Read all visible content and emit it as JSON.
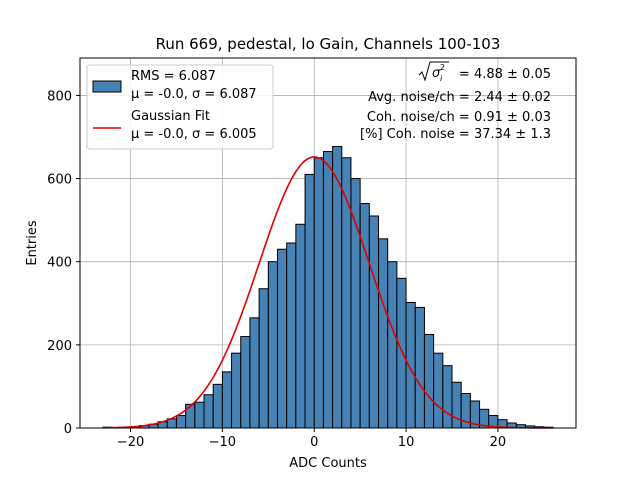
{
  "chart_data": {
    "type": "bar",
    "title": "Run 669, pedestal, lo Gain, Channels 100-103",
    "xlabel": "ADC Counts",
    "ylabel": "Entries",
    "xlim": [
      -25.5,
      28.5
    ],
    "ylim": [
      0,
      890
    ],
    "x_ticks": [
      -20,
      -10,
      0,
      10,
      20
    ],
    "y_ticks": [
      0,
      200,
      400,
      600,
      800
    ],
    "grid": true,
    "bin_width": 1,
    "bin_edges_start": -23,
    "histogram_counts": [
      2,
      1,
      1,
      3,
      6,
      9,
      15,
      22,
      30,
      57,
      62,
      80,
      105,
      135,
      180,
      220,
      265,
      335,
      400,
      430,
      445,
      490,
      610,
      650,
      665,
      677,
      650,
      600,
      540,
      510,
      455,
      400,
      360,
      302,
      290,
      225,
      180,
      150,
      110,
      83,
      65,
      45,
      30,
      20,
      12,
      8,
      5,
      3,
      2
    ],
    "series": [
      {
        "name": "RMS = 6.087",
        "name_line2": "μ = -0.0, σ = 6.087",
        "kind": "histogram",
        "color": "#4682b4",
        "edge_color": "#000000"
      },
      {
        "name": "Gaussian Fit",
        "name_line2": "μ = -0.0, σ = 6.005",
        "kind": "line",
        "color": "#e00000",
        "mu": 0.0,
        "sigma": 6.005,
        "amplitude": 652
      }
    ],
    "legend_position": "upper-left",
    "annotations": [
      {
        "id": "sigma_i",
        "text": "= 4.88 ± 0.05"
      },
      {
        "id": "avg_noise",
        "text": "Avg. noise/ch = 2.44 ± 0.02"
      },
      {
        "id": "coh_noise",
        "text": "Coh. noise/ch = 0.91 ± 0.03"
      },
      {
        "id": "coh_pct",
        "text": "[%] Coh. noise = 37.34 ± 1.3"
      }
    ]
  }
}
